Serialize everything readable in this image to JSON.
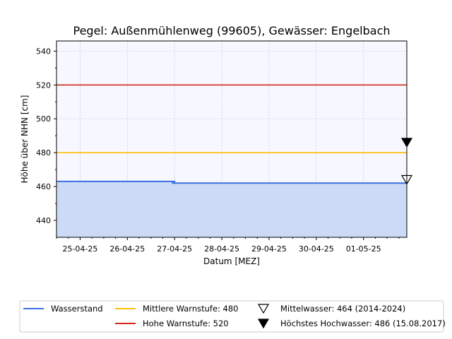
{
  "chart_data": {
    "type": "line",
    "title": "Pegel:  Außenmühlenweg (99605), Gewässer:  Engelbach",
    "xlabel": "Datum [MEZ]",
    "ylabel": "Höhe über NHN [cm]",
    "ylim": [
      430,
      546
    ],
    "xlim": [
      "2025-04-24T12:00",
      "2025-05-01T22:00"
    ],
    "yticks": [
      440,
      460,
      480,
      500,
      520,
      540
    ],
    "xticks": [
      {
        "t": "2025-04-25T00:00",
        "label": "25-04-25"
      },
      {
        "t": "2025-04-26T00:00",
        "label": "26-04-25"
      },
      {
        "t": "2025-04-27T00:00",
        "label": "27-04-25"
      },
      {
        "t": "2025-04-28T00:00",
        "label": "28-04-25"
      },
      {
        "t": "2025-04-29T00:00",
        "label": "29-04-25"
      },
      {
        "t": "2025-04-30T00:00",
        "label": "30-04-25"
      },
      {
        "t": "2025-05-01T00:00",
        "label": "01-05-25"
      }
    ],
    "grid": true,
    "legend_position": "bottom",
    "series": [
      {
        "name": "Wasserstand",
        "color": "#3d6fe0",
        "fill": "#ccdaf6",
        "points": [
          {
            "t": "2025-04-24T12:00",
            "v": 463
          },
          {
            "t": "2025-04-26T23:00",
            "v": 463
          },
          {
            "t": "2025-04-26T23:00",
            "v": 462
          },
          {
            "t": "2025-04-26T23:45",
            "v": 462
          },
          {
            "t": "2025-04-26T23:45",
            "v": 463
          },
          {
            "t": "2025-04-27T00:00",
            "v": 463
          },
          {
            "t": "2025-04-27T00:00",
            "v": 462
          },
          {
            "t": "2025-05-01T22:00",
            "v": 462
          }
        ]
      }
    ],
    "hlines": [
      {
        "name": "Mittlere Warnstufe: 480",
        "value": 480,
        "color": "#ffbf00"
      },
      {
        "name": "Hohe Warnstufe: 520",
        "value": 520,
        "color": "#d62718"
      }
    ],
    "markers": [
      {
        "name": "Mittelwasser: 464 (2014-2024)",
        "value": 464,
        "style": "open-triangle-down"
      },
      {
        "name": "Höchstes Hochwasser: 486 (15.08.2017)",
        "value": 486,
        "style": "filled-triangle-down"
      }
    ]
  }
}
